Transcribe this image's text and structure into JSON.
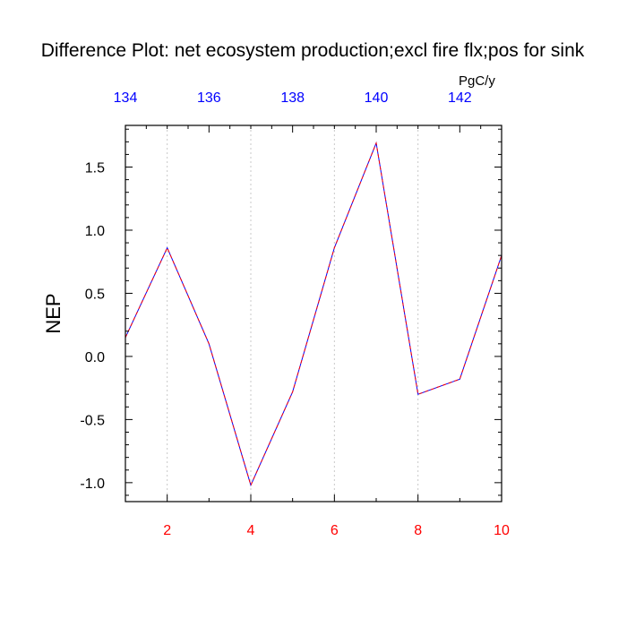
{
  "chart_data": {
    "type": "line",
    "title": "Difference Plot: net ecosystem production;excl fire flx;pos for sink",
    "ylabel": "NEP",
    "top_axis_unit": "PgC/y",
    "x": [
      1,
      2,
      3,
      4,
      5,
      6,
      7,
      8,
      9,
      10
    ],
    "xlim": [
      1,
      10
    ],
    "ylim": [
      -1.15,
      1.83
    ],
    "x_ticks": [
      "2",
      "4",
      "6",
      "8",
      "10"
    ],
    "y_ticks": [
      "1.5",
      "1.0",
      "0.5",
      "0.0",
      "-0.5",
      "-1.0"
    ],
    "top_ticks": [
      "134",
      "136",
      "138",
      "140",
      "142"
    ],
    "top_xlim": [
      134,
      143
    ],
    "series": [
      {
        "values": [
          0.15,
          0.86,
          0.1,
          -1.02,
          -0.28,
          0.86,
          1.69,
          -0.3,
          -0.18,
          0.8
        ],
        "color": "#0000ff",
        "style": "solid"
      },
      {
        "values": [
          0.15,
          0.86,
          0.1,
          -1.02,
          -0.28,
          0.86,
          1.69,
          -0.3,
          -0.18,
          0.8
        ],
        "color": "#ff0000",
        "style": "dashed"
      }
    ],
    "grid": "vertical-dotted",
    "colors": {
      "bottom_ticks": "#ff0000",
      "top_ticks": "#0000ff",
      "left_ticks": "#000000",
      "grid": "#c8c8c8"
    }
  }
}
